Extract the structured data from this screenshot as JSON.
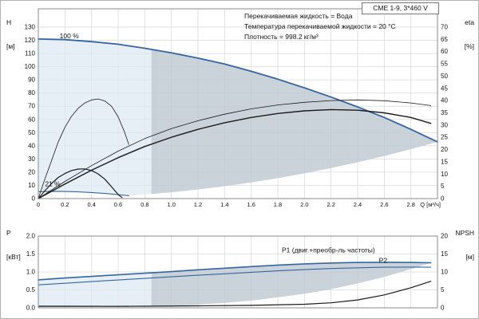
{
  "title_box": {
    "label": "CME 1-9, 3*460 V"
  },
  "info": {
    "line1": "Перекачиваемая жидкость = Вода",
    "line2": "Температура перекачиваемой жидкости = 20 °C",
    "line3": "Плотность = 998.2 кг/м³"
  },
  "axis_headers": {
    "h_name": "H",
    "h_unit": "[м]",
    "eta_name": "eta",
    "eta_unit": "[%]",
    "p_name": "P",
    "p_unit": "[кВт]",
    "npsh_name": "NPSH",
    "npsh_unit": "[м]",
    "q_label": "Q [м³/ч]"
  },
  "colors": {
    "curve_blue": "#3565a0",
    "curve_black": "#1a1a1a",
    "label_blue": "#3565a0",
    "region_light": "#dde9f3",
    "region_dark": "#c2cbd3",
    "grid": "#d8d8d8",
    "frame": "#888888"
  },
  "chart_data": [
    {
      "type": "line",
      "panel": "head",
      "title": "H-Q pump curves with speed envelope and efficiency",
      "x_range": [
        0,
        3
      ],
      "x_ticks": [
        0,
        0.2,
        0.4,
        0.6,
        0.8,
        1.0,
        1.2,
        1.4,
        1.6,
        1.8,
        2.0,
        2.2,
        2.4,
        2.6,
        2.8
      ],
      "x_tick_labels": [
        "0",
        "0.2",
        "0.4",
        "0.6",
        "0.8",
        "1.0",
        "1.2",
        "1.4",
        "1.6",
        "1.8",
        "2.0",
        "2.2",
        "2.4",
        "2.6",
        "2.8"
      ],
      "left_axis": {
        "label": "H [м]",
        "min": 0,
        "max": 130,
        "ticks": [
          0,
          10,
          20,
          30,
          40,
          50,
          60,
          70,
          80,
          90,
          100,
          110,
          120,
          130
        ],
        "tick_labels": [
          "0",
          "10",
          "20",
          "30",
          "40",
          "50",
          "60",
          "70",
          "80",
          "90",
          "100",
          "110",
          "120",
          "130"
        ]
      },
      "right_axis": {
        "label": "eta [%]",
        "min": 0,
        "max": 70,
        "ticks": [
          0,
          5,
          10,
          15,
          20,
          25,
          30,
          35,
          40,
          45,
          50,
          55,
          60,
          65,
          70
        ],
        "tick_labels": [
          "0",
          "5",
          "10",
          "15",
          "20",
          "25",
          "30",
          "35",
          "40",
          "45",
          "50",
          "55",
          "60",
          "65",
          "70"
        ]
      },
      "annotations": [
        {
          "name": "speed-100-label",
          "text": "100 %",
          "q": 0.16,
          "v": 121.5,
          "color": "black"
        },
        {
          "name": "speed-21-label",
          "text": "21 %",
          "q": 0.05,
          "v": 9.5,
          "color": "black"
        }
      ],
      "regions": [
        {
          "name": "envelope-light-head",
          "fill": "light",
          "opacity": 0.75,
          "points": [
            [
              0,
              121
            ],
            [
              0.2,
              120.5
            ],
            [
              0.4,
              119
            ],
            [
              0.6,
              117
            ],
            [
              0.8,
              114
            ],
            [
              0.9,
              112.5
            ],
            [
              0.9,
              4
            ],
            [
              0.68,
              2.2
            ],
            [
              0.6,
              3
            ],
            [
              0.5,
              3.9
            ],
            [
              0.4,
              4.6
            ],
            [
              0.3,
              5.1
            ],
            [
              0.2,
              5.4
            ],
            [
              0.1,
              5.5
            ],
            [
              0,
              5.2
            ]
          ]
        },
        {
          "name": "envelope-dark-head",
          "fill": "dark",
          "opacity": 0.85,
          "points": [
            [
              0.85,
              113.2
            ],
            [
              1,
              110.5
            ],
            [
              1.2,
              106.5
            ],
            [
              1.4,
              102
            ],
            [
              1.6,
              96.5
            ],
            [
              1.8,
              90.5
            ],
            [
              2,
              84
            ],
            [
              2.2,
              77
            ],
            [
              2.4,
              69.5
            ],
            [
              2.6,
              61.5
            ],
            [
              2.8,
              52.5
            ],
            [
              3,
              43
            ],
            [
              2.8,
              37.5
            ],
            [
              2.6,
              32.3
            ],
            [
              2.4,
              27.5
            ],
            [
              2.2,
              23.1
            ],
            [
              2,
              19.1
            ],
            [
              1.8,
              15.5
            ],
            [
              1.6,
              12.2
            ],
            [
              1.4,
              9.4
            ],
            [
              1.2,
              6.9
            ],
            [
              1,
              4.8
            ],
            [
              0.85,
              3.5
            ]
          ]
        }
      ],
      "series": [
        {
          "name": "h-curve-100",
          "color": "blue",
          "width": 1.8,
          "axis": "left",
          "points": [
            [
              0,
              121
            ],
            [
              0.2,
              120.5
            ],
            [
              0.4,
              119
            ],
            [
              0.6,
              117
            ],
            [
              0.8,
              114
            ],
            [
              1,
              110.5
            ],
            [
              1.2,
              106.5
            ],
            [
              1.4,
              102
            ],
            [
              1.6,
              96.5
            ],
            [
              1.8,
              90.5
            ],
            [
              2,
              84
            ],
            [
              2.2,
              77
            ],
            [
              2.4,
              69.5
            ],
            [
              2.6,
              61.5
            ],
            [
              2.8,
              52.5
            ],
            [
              3,
              43
            ]
          ]
        },
        {
          "name": "h-curve-21",
          "color": "blue",
          "width": 1.1,
          "axis": "left",
          "points": [
            [
              0,
              5.2
            ],
            [
              0.1,
              5.5
            ],
            [
              0.2,
              5.4
            ],
            [
              0.3,
              5.1
            ],
            [
              0.4,
              4.6
            ],
            [
              0.5,
              3.9
            ],
            [
              0.6,
              3
            ],
            [
              0.68,
              2.2
            ]
          ]
        },
        {
          "name": "eta-21-upper-curve",
          "color": "black",
          "width": 0.8,
          "axis": "left",
          "points": [
            [
              0,
              0
            ],
            [
              0.05,
              15
            ],
            [
              0.1,
              29
            ],
            [
              0.15,
              43
            ],
            [
              0.2,
              54
            ],
            [
              0.25,
              62.5
            ],
            [
              0.3,
              68.5
            ],
            [
              0.35,
              72.5
            ],
            [
              0.4,
              74.8
            ],
            [
              0.45,
              75.5
            ],
            [
              0.5,
              74
            ],
            [
              0.55,
              70
            ],
            [
              0.6,
              62
            ],
            [
              0.65,
              50
            ],
            [
              0.68,
              41
            ]
          ]
        },
        {
          "name": "eta-21-lower-curve",
          "color": "black",
          "width": 1.2,
          "axis": "left",
          "points": [
            [
              0,
              0
            ],
            [
              0.05,
              6
            ],
            [
              0.1,
              11.5
            ],
            [
              0.15,
              16
            ],
            [
              0.2,
              19
            ],
            [
              0.25,
              21.3
            ],
            [
              0.3,
              22.4
            ],
            [
              0.35,
              22.5
            ],
            [
              0.4,
              21.3
            ],
            [
              0.45,
              18.7
            ],
            [
              0.5,
              14.7
            ],
            [
              0.55,
              9
            ],
            [
              0.6,
              3
            ],
            [
              0.63,
              0.8
            ]
          ]
        },
        {
          "name": "eta-100-upper-curve",
          "color": "black",
          "width": 0.8,
          "axis": "left",
          "points": [
            [
              0,
              0
            ],
            [
              0.2,
              13
            ],
            [
              0.4,
              25
            ],
            [
              0.6,
              36
            ],
            [
              0.8,
              45.5
            ],
            [
              1,
              53
            ],
            [
              1.2,
              59
            ],
            [
              1.4,
              64
            ],
            [
              1.6,
              68
            ],
            [
              1.8,
              71
            ],
            [
              2,
              73
            ],
            [
              2.2,
              74.3
            ],
            [
              2.4,
              74.8
            ],
            [
              2.6,
              74.2
            ],
            [
              2.8,
              72.5
            ],
            [
              2.95,
              70.5
            ]
          ]
        },
        {
          "name": "eta-100-lower-curve",
          "color": "black",
          "width": 1.4,
          "axis": "left",
          "points": [
            [
              0,
              0
            ],
            [
              0.2,
              11
            ],
            [
              0.4,
              21.5
            ],
            [
              0.6,
              31
            ],
            [
              0.8,
              39.5
            ],
            [
              1,
              46.5
            ],
            [
              1.2,
              52.5
            ],
            [
              1.4,
              57.5
            ],
            [
              1.6,
              61.5
            ],
            [
              1.8,
              64.5
            ],
            [
              2,
              66.5
            ],
            [
              2.2,
              67.5
            ],
            [
              2.4,
              67
            ],
            [
              2.6,
              65
            ],
            [
              2.8,
              61.5
            ],
            [
              2.95,
              57
            ]
          ]
        }
      ]
    },
    {
      "type": "line",
      "panel": "power",
      "title": "Power P1/P2 and NPSH curves",
      "x_range": [
        0,
        3
      ],
      "x_ticks": [
        0,
        0.2,
        0.4,
        0.6,
        0.8,
        1.0,
        1.2,
        1.4,
        1.6,
        1.8,
        2.0,
        2.2,
        2.4,
        2.6,
        2.8
      ],
      "x_tick_labels": [],
      "left_axis": {
        "label": "P [кВт]",
        "min": 0,
        "max": 2,
        "ticks": [
          0,
          0.5,
          1,
          1.5,
          2
        ],
        "tick_labels": [
          "0.0",
          "0.5",
          "1.0",
          "1.5",
          "2.0"
        ]
      },
      "right_axis": {
        "label": "NPSH [м]",
        "min": 0,
        "max": 20,
        "ticks": [
          0,
          5,
          10,
          15,
          20
        ],
        "tick_labels": [
          "0",
          "5",
          "10",
          "15",
          "20"
        ]
      },
      "annotations": [
        {
          "name": "p1-label",
          "text": "P1 (двиг.+преобр-ль частоты)",
          "q": 1.83,
          "v": 1.55,
          "color": "blue"
        },
        {
          "name": "p2-label",
          "text": "P2",
          "q": 2.56,
          "v": 1.26,
          "color": "blue"
        }
      ],
      "regions": [
        {
          "name": "envelope-light-power",
          "fill": "light",
          "opacity": 0.75,
          "points": [
            [
              0,
              0.78
            ],
            [
              0.2,
              0.83
            ],
            [
              0.4,
              0.875
            ],
            [
              0.6,
              0.92
            ],
            [
              0.8,
              0.965
            ],
            [
              0.9,
              0.99
            ],
            [
              0.9,
              0.05
            ],
            [
              0,
              0.05
            ]
          ]
        },
        {
          "name": "envelope-dark-power",
          "fill": "dark",
          "opacity": 0.85,
          "points": [
            [
              0.85,
              0.975
            ],
            [
              1,
              1.01
            ],
            [
              1.2,
              1.06
            ],
            [
              1.4,
              1.105
            ],
            [
              1.6,
              1.15
            ],
            [
              1.8,
              1.19
            ],
            [
              2,
              1.225
            ],
            [
              2.2,
              1.25
            ],
            [
              2.4,
              1.265
            ],
            [
              2.6,
              1.27
            ],
            [
              2.8,
              1.265
            ],
            [
              2.95,
              1.255
            ],
            [
              2.8,
              1.08
            ],
            [
              2.6,
              0.86
            ],
            [
              2.4,
              0.68
            ],
            [
              2.2,
              0.52
            ],
            [
              2,
              0.39
            ],
            [
              1.8,
              0.29
            ],
            [
              1.6,
              0.2
            ],
            [
              1.4,
              0.14
            ],
            [
              1.2,
              0.09
            ],
            [
              1,
              0.05
            ],
            [
              0.85,
              0.03
            ]
          ]
        }
      ],
      "series": [
        {
          "name": "p1-curve",
          "color": "blue",
          "width": 1.6,
          "axis": "left",
          "points": [
            [
              0,
              0.78
            ],
            [
              0.2,
              0.83
            ],
            [
              0.4,
              0.875
            ],
            [
              0.6,
              0.92
            ],
            [
              0.8,
              0.965
            ],
            [
              1,
              1.01
            ],
            [
              1.2,
              1.06
            ],
            [
              1.4,
              1.105
            ],
            [
              1.6,
              1.15
            ],
            [
              1.8,
              1.19
            ],
            [
              2,
              1.225
            ],
            [
              2.2,
              1.25
            ],
            [
              2.4,
              1.265
            ],
            [
              2.6,
              1.27
            ],
            [
              2.8,
              1.265
            ],
            [
              2.95,
              1.255
            ]
          ]
        },
        {
          "name": "p2-curve",
          "color": "blue",
          "width": 1.1,
          "axis": "left",
          "points": [
            [
              0,
              0.64
            ],
            [
              0.2,
              0.685
            ],
            [
              0.4,
              0.73
            ],
            [
              0.6,
              0.775
            ],
            [
              0.8,
              0.82
            ],
            [
              1,
              0.865
            ],
            [
              1.2,
              0.91
            ],
            [
              1.4,
              0.95
            ],
            [
              1.6,
              0.99
            ],
            [
              1.8,
              1.03
            ],
            [
              2,
              1.065
            ],
            [
              2.2,
              1.095
            ],
            [
              2.4,
              1.115
            ],
            [
              2.6,
              1.13
            ],
            [
              2.8,
              1.135
            ],
            [
              2.95,
              1.13
            ]
          ]
        },
        {
          "name": "p-curve-21",
          "color": "blue",
          "width": 1.0,
          "axis": "left",
          "points": [
            [
              0,
              0.05
            ],
            [
              0.2,
              0.05
            ],
            [
              0.4,
              0.046
            ],
            [
              0.55,
              0.042
            ],
            [
              0.68,
              0.038
            ]
          ]
        },
        {
          "name": "npsh-curve",
          "color": "black",
          "width": 1.2,
          "axis": "right",
          "points": [
            [
              0,
              0.4
            ],
            [
              0.4,
              0.4
            ],
            [
              0.8,
              0.45
            ],
            [
              1.2,
              0.55
            ],
            [
              1.6,
              0.7
            ],
            [
              2,
              1
            ],
            [
              2.2,
              1.4
            ],
            [
              2.4,
              2.2
            ],
            [
              2.6,
              3.6
            ],
            [
              2.8,
              5.6
            ],
            [
              2.95,
              7.4
            ]
          ]
        }
      ]
    }
  ]
}
